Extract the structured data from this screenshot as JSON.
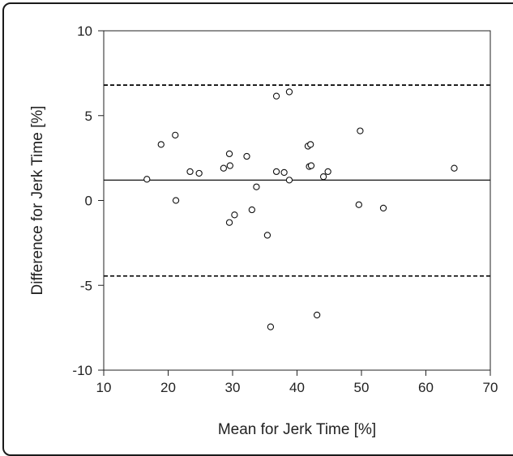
{
  "chart_data": {
    "type": "scatter",
    "xlabel": "Mean for Jerk Time [%]",
    "ylabel": "Difference for Jerk Time [%]",
    "xlim": [
      10,
      70
    ],
    "ylim": [
      -10,
      10
    ],
    "x_ticks": [
      10,
      20,
      30,
      40,
      50,
      60,
      70
    ],
    "y_ticks": [
      10,
      5,
      0,
      -5,
      -10
    ],
    "x_tick_labels": [
      "10",
      "20",
      "30",
      "40",
      "50",
      "60",
      "70"
    ],
    "y_tick_labels": [
      "10",
      "5",
      "0",
      "-5",
      "-10"
    ],
    "grid": false,
    "reference_lines": [
      {
        "kind": "upper-limit",
        "y": 6.8,
        "style": "dashed"
      },
      {
        "kind": "mean-difference",
        "y": 1.2,
        "style": "solid"
      },
      {
        "kind": "lower-limit",
        "y": -4.45,
        "style": "dashed"
      }
    ],
    "series": [
      {
        "marker": "open-circle",
        "points": [
          [
            16.7,
            1.25
          ],
          [
            18.9,
            3.3
          ],
          [
            21.1,
            3.85
          ],
          [
            21.2,
            0.0
          ],
          [
            23.4,
            1.7
          ],
          [
            24.8,
            1.6
          ],
          [
            28.6,
            1.9
          ],
          [
            29.5,
            2.75
          ],
          [
            29.6,
            2.05
          ],
          [
            29.5,
            -1.3
          ],
          [
            30.3,
            -0.85
          ],
          [
            32.2,
            2.6
          ],
          [
            33.0,
            -0.55
          ],
          [
            33.7,
            0.8
          ],
          [
            35.4,
            -2.05
          ],
          [
            35.9,
            -7.45
          ],
          [
            36.8,
            6.15
          ],
          [
            36.8,
            1.7
          ],
          [
            38.0,
            1.65
          ],
          [
            38.8,
            6.4
          ],
          [
            38.8,
            1.2
          ],
          [
            41.7,
            3.2
          ],
          [
            42.1,
            3.3
          ],
          [
            41.9,
            2.0
          ],
          [
            42.2,
            2.05
          ],
          [
            43.1,
            -6.75
          ],
          [
            44.1,
            1.4
          ],
          [
            44.8,
            1.7
          ],
          [
            49.6,
            -0.25
          ],
          [
            49.8,
            4.1
          ],
          [
            53.4,
            -0.45
          ],
          [
            64.4,
            1.9
          ]
        ]
      }
    ]
  }
}
